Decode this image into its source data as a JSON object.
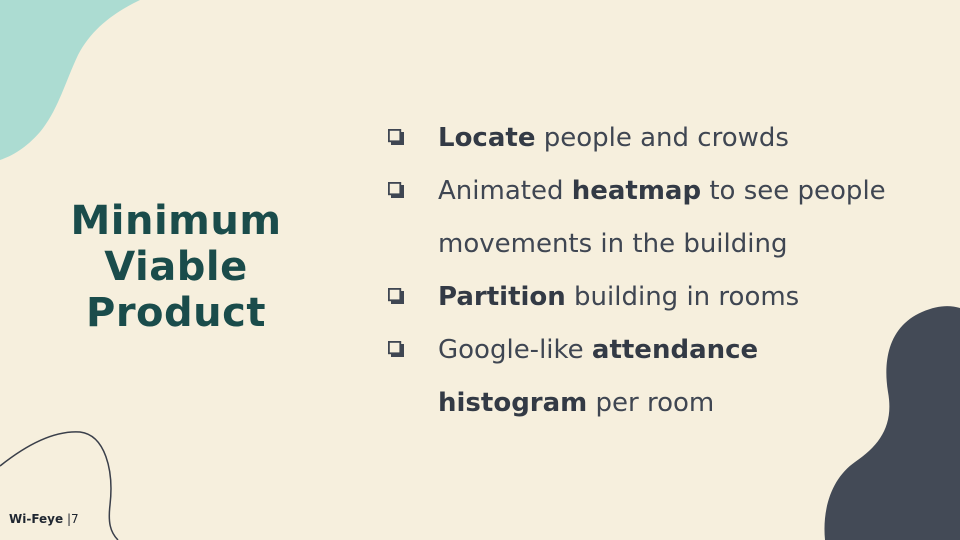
{
  "slide": {
    "title_lines": [
      "Minimum",
      "Viable",
      "Product"
    ],
    "bullets": [
      {
        "parts": [
          {
            "text": "Locate",
            "bold": true
          },
          {
            "text": " people and crowds",
            "bold": false
          }
        ]
      },
      {
        "parts": [
          {
            "text": "Animated ",
            "bold": false
          },
          {
            "text": "heatmap",
            "bold": true
          },
          {
            "text": " to see people movements in the building",
            "bold": false
          }
        ]
      },
      {
        "parts": [
          {
            "text": "Partition",
            "bold": true
          },
          {
            "text": " building in rooms",
            "bold": false
          }
        ]
      },
      {
        "parts": [
          {
            "text": "Google-like ",
            "bold": false
          },
          {
            "text": "attendance histogram",
            "bold": true
          },
          {
            "text": " per room",
            "bold": false
          }
        ]
      }
    ],
    "bullet_icon": "checkbox-icon"
  },
  "footer": {
    "brand": "Wi-Feye",
    "separator": "|",
    "page": "7"
  },
  "colors": {
    "background": "#f6efdd",
    "title": "#1a4c4b",
    "text": "#3f4652",
    "blob_teal": "#acdcd2",
    "blob_dark": "#434a56"
  }
}
